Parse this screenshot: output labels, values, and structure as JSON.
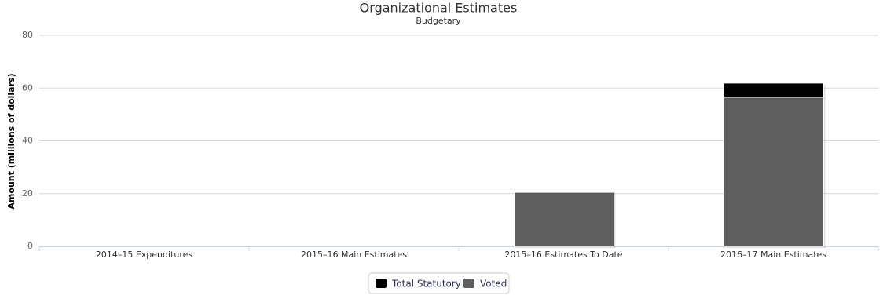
{
  "chart_data": {
    "type": "stacked_bar",
    "title": "Organizational Estimates",
    "subtitle": "Budgetary",
    "y_label": "Amount (millions of dollars)",
    "categories": [
      "2014–15 Expenditures",
      "2015–16 Main Estimates",
      "2015–16 Estimates To Date",
      "2016–17 Main Estimates"
    ],
    "series": [
      {
        "name": "Total Statutory",
        "color": "#000000",
        "values": [
          null,
          null,
          0.3,
          5.4
        ]
      },
      {
        "name": "Voted",
        "color": "#5f5f5f",
        "values": [
          null,
          null,
          20.5,
          56.5
        ]
      }
    ],
    "ylim": [
      0,
      80
    ],
    "yticks": [
      0,
      20,
      40,
      60,
      80
    ],
    "grid": true
  }
}
